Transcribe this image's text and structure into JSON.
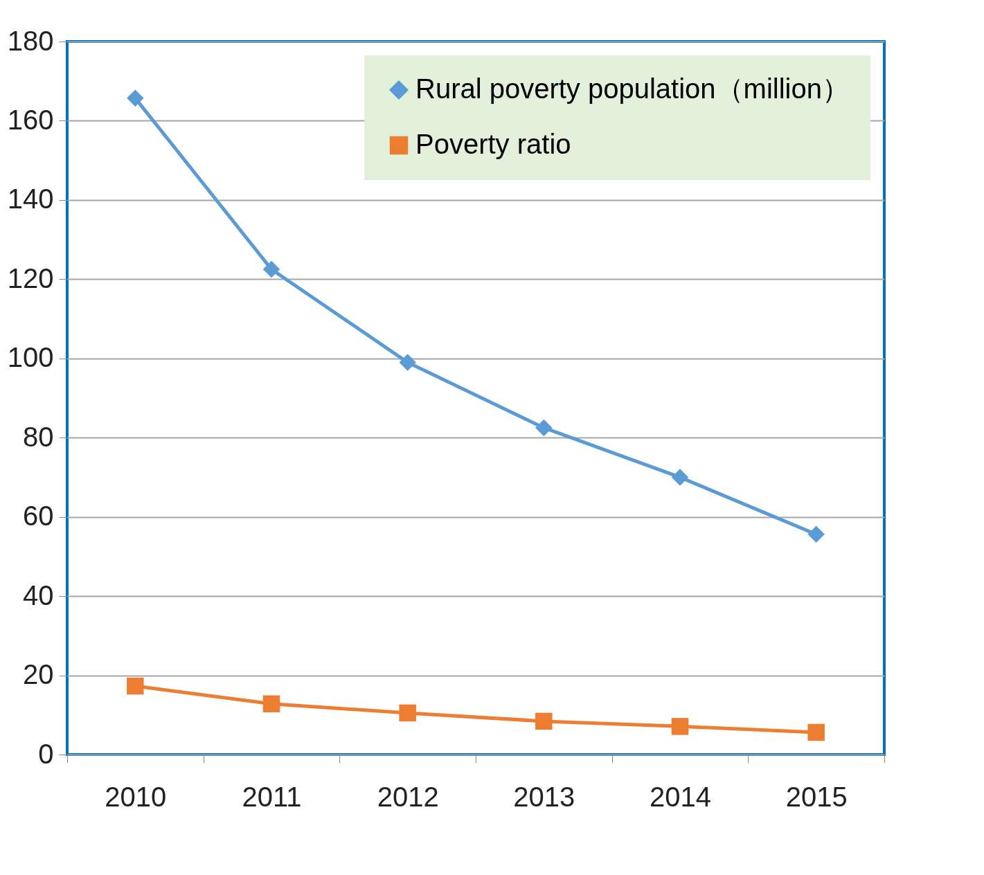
{
  "chart_data": {
    "type": "line",
    "categories": [
      "2010",
      "2011",
      "2012",
      "2013",
      "2014",
      "2015"
    ],
    "series": [
      {
        "name": "Rural poverty population（million）",
        "color": "#5b9bd5",
        "marker": "diamond",
        "values": [
          165.7,
          122.5,
          99.0,
          82.5,
          70.0,
          55.6
        ]
      },
      {
        "name": "Poverty ratio",
        "color": "#ed7d31",
        "marker": "square",
        "values": [
          17.3,
          12.8,
          10.5,
          8.4,
          7.1,
          5.6
        ]
      }
    ],
    "ylim": [
      0,
      180
    ],
    "yticks": [
      0,
      20,
      40,
      60,
      80,
      100,
      120,
      140,
      160,
      180
    ],
    "grid": "y",
    "legend": "top right",
    "line_style": "solid"
  }
}
